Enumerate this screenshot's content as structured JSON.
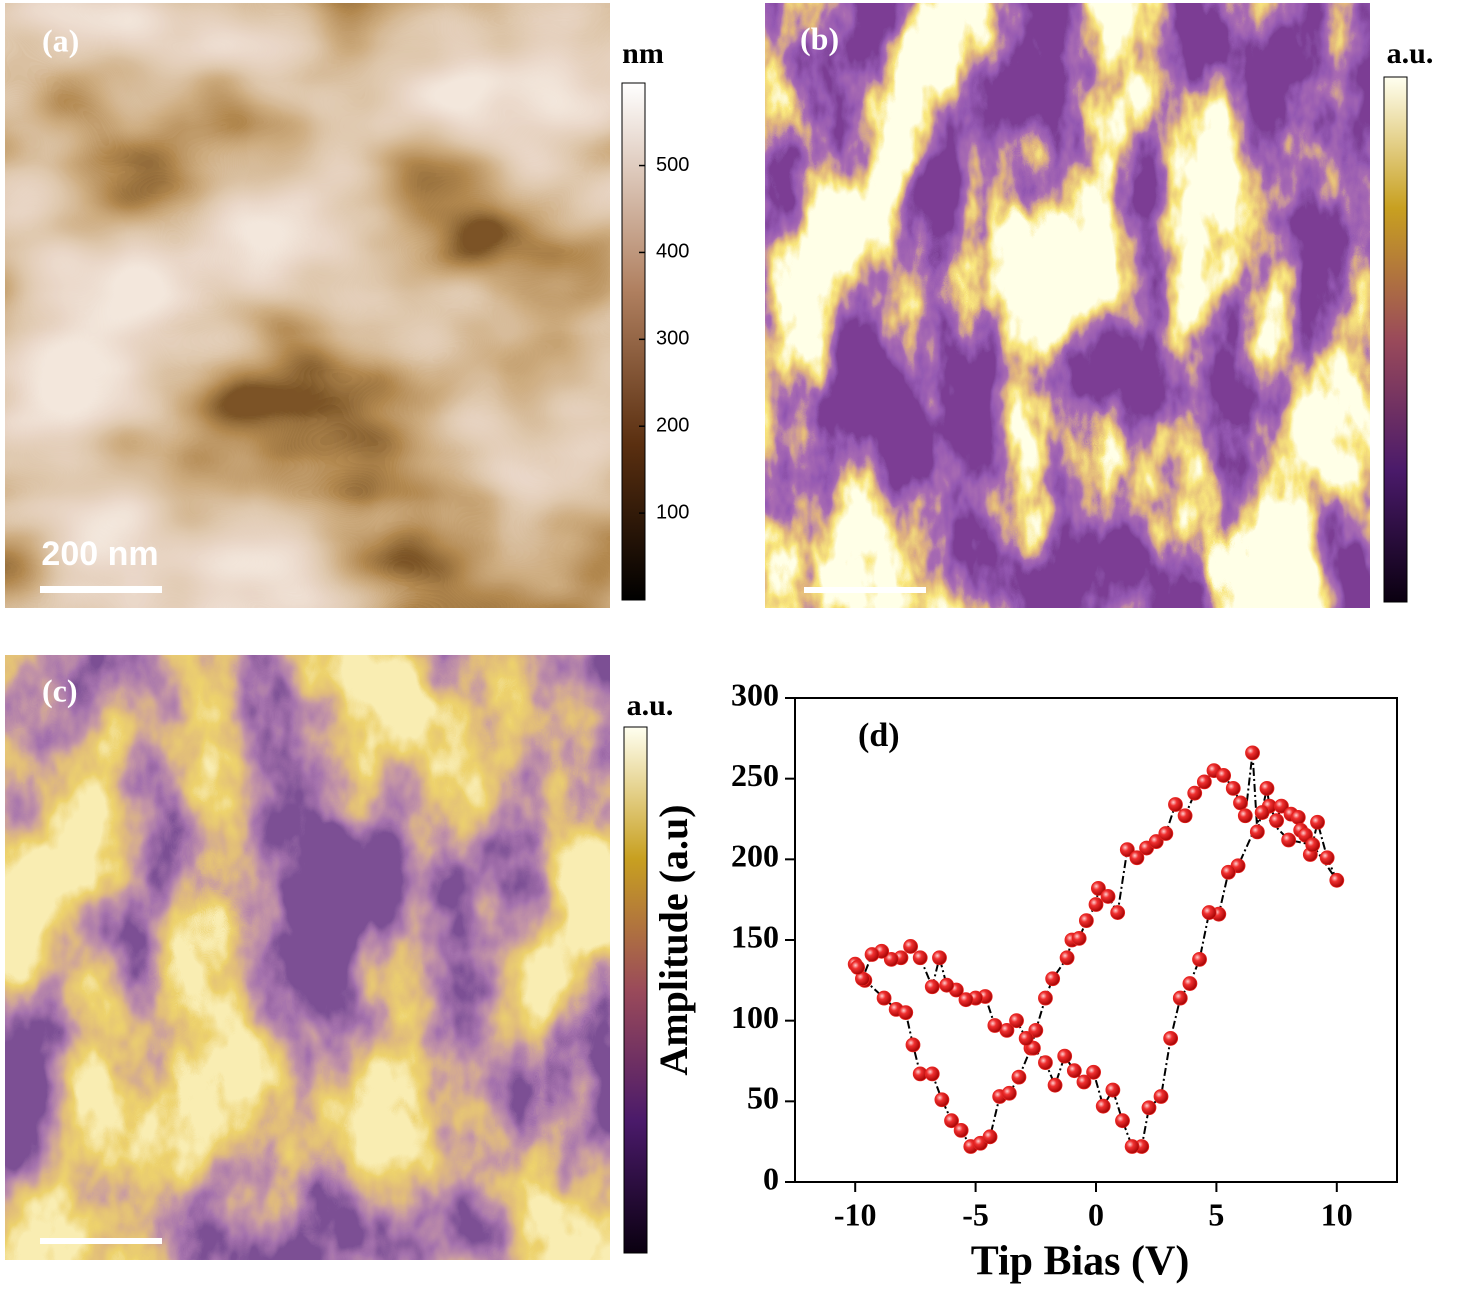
{
  "panels": [
    {
      "label": "(a)",
      "scale_bar": "200 nm",
      "colorbar": {
        "title": "nm",
        "lim": [
          0,
          595
        ],
        "ticks": [
          100,
          200,
          300,
          400,
          500
        ]
      }
    },
    {
      "label": "(b)",
      "colorbar": {
        "title": "a.u."
      }
    },
    {
      "label": "(c)",
      "colorbar": {
        "title": "a.u."
      }
    }
  ],
  "chart_data": {
    "type": "scatter",
    "label": "(d)",
    "x_label": "Tip Bias (V)",
    "y_label": "Amplitude (a.u)",
    "x": [
      -10,
      -9.6,
      -8.8,
      -8.3,
      -7.9,
      -7.6,
      -7.3,
      -6.8,
      -6.4,
      -6,
      -5.6,
      -5.2,
      -4.8,
      -4.4,
      -4,
      -3.6,
      -3.2,
      -2.7,
      -2.5,
      -2.1,
      -1.8,
      -1.2,
      -1,
      -0.7,
      -0.4,
      0,
      0.1,
      0.5,
      0.9,
      1.3,
      1.7,
      2.1,
      2.5,
      2.9,
      3.3,
      3.7,
      4.1,
      4.5,
      4.9,
      5.3,
      5.7,
      6,
      6.2,
      6.5,
      6.7,
      7.1,
      7.2,
      7.5,
      7.7,
      8.1,
      8.4,
      8.5,
      8.7,
      8.9,
      9.2,
      9.6,
      10,
      9,
      8,
      6.9,
      5.9,
      5.5,
      5.1,
      4.7,
      4.3,
      3.9,
      3.5,
      3.1,
      2.7,
      2.2,
      1.9,
      1.5,
      1.1,
      0.7,
      0.3,
      -0.1,
      -0.5,
      -0.9,
      -1.3,
      -1.7,
      -2.1,
      -2.6,
      -2.9,
      -3.3,
      -3.7,
      -4.2,
      -4.6,
      -5,
      -5.4,
      -5.8,
      -6.2,
      -6.5,
      -6.8,
      -7.3,
      -7.7,
      -8.1,
      -8.5,
      -8.9,
      -9.3,
      -9.7,
      -9.9
    ],
    "values": [
      135,
      125,
      114,
      107,
      105,
      85,
      67,
      67,
      51,
      38,
      32,
      22,
      24,
      28,
      53,
      55,
      65,
      83,
      94,
      114,
      126,
      139,
      150,
      151,
      162,
      172,
      182,
      177,
      167,
      206,
      201,
      207,
      211,
      216,
      234,
      227,
      241,
      248,
      255,
      252,
      244,
      235,
      227,
      266,
      217,
      244,
      233,
      224,
      233,
      228,
      226,
      218,
      215,
      203,
      223,
      201,
      187,
      209,
      212,
      229,
      196,
      192,
      166,
      167,
      138,
      123,
      114,
      89,
      53,
      46,
      22,
      22,
      38,
      57,
      47,
      68,
      62,
      69,
      78,
      60,
      74,
      83,
      89,
      100,
      94,
      97,
      115,
      114,
      113,
      119,
      122,
      139,
      121,
      139,
      146,
      139,
      138,
      143,
      141,
      126,
      133
    ],
    "color": "#e5231f",
    "line_color": "#000000",
    "xlim": [
      -12.5,
      12.5
    ],
    "xticks": [
      -10,
      -5,
      0,
      5,
      10
    ],
    "ylim": [
      0,
      300
    ],
    "yticks": [
      0,
      50,
      100,
      150,
      200,
      250,
      300
    ]
  }
}
